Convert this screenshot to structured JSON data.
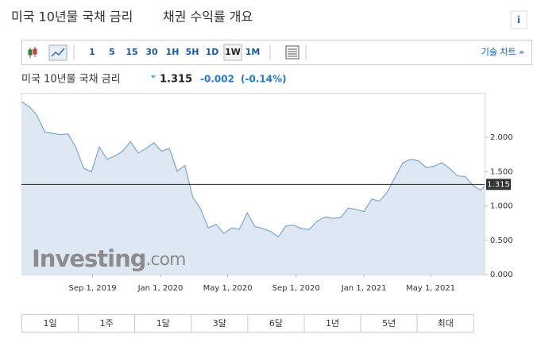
{
  "title": "미국 10년물 국채 금리",
  "subtitle": "채권 수익률 개요",
  "info_icon": "i",
  "toolbar": {
    "intervals": [
      "1",
      "5",
      "15",
      "30",
      "1H",
      "5H",
      "1D",
      "1W",
      "1M"
    ],
    "selected": "1W",
    "tech_chart": "기술 차트 »"
  },
  "quote": {
    "name": "미국 10년물 국채 금리",
    "price": 1.315,
    "change": -0.002,
    "change_pct": "(-0.14%)"
  },
  "watermark": {
    "brand": "Investing",
    "suffix": ".com"
  },
  "chart_data": {
    "type": "line",
    "x": [
      "2019-04-26",
      "2019-05-10",
      "2019-05-24",
      "2019-06-07",
      "2019-06-21",
      "2019-07-05",
      "2019-07-19",
      "2019-08-02",
      "2019-08-16",
      "2019-08-30",
      "2019-09-13",
      "2019-09-27",
      "2019-10-11",
      "2019-10-25",
      "2019-11-08",
      "2019-11-22",
      "2019-12-06",
      "2019-12-20",
      "2020-01-03",
      "2020-01-17",
      "2020-01-31",
      "2020-02-14",
      "2020-02-28",
      "2020-03-13",
      "2020-03-27",
      "2020-04-10",
      "2020-04-24",
      "2020-05-08",
      "2020-05-22",
      "2020-06-05",
      "2020-06-19",
      "2020-07-03",
      "2020-07-17",
      "2020-07-31",
      "2020-08-14",
      "2020-08-28",
      "2020-09-11",
      "2020-09-25",
      "2020-10-09",
      "2020-10-23",
      "2020-11-06",
      "2020-11-20",
      "2020-12-04",
      "2020-12-18",
      "2021-01-01",
      "2021-01-15",
      "2021-01-29",
      "2021-02-12",
      "2021-02-26",
      "2021-03-12",
      "2021-03-26",
      "2021-04-09",
      "2021-04-23",
      "2021-05-07",
      "2021-05-21",
      "2021-06-04",
      "2021-06-18",
      "2021-07-02",
      "2021-07-16",
      "2021-07-30",
      "2021-08-06"
    ],
    "series": [
      {
        "color": "#7ea6cf",
        "fill": "#dde8f2",
        "values": [
          2.52,
          2.45,
          2.32,
          2.08,
          2.06,
          2.04,
          2.05,
          1.85,
          1.55,
          1.5,
          1.86,
          1.68,
          1.73,
          1.8,
          1.94,
          1.77,
          1.84,
          1.92,
          1.8,
          1.84,
          1.51,
          1.59,
          1.13,
          0.96,
          0.68,
          0.73,
          0.6,
          0.68,
          0.66,
          0.9,
          0.7,
          0.67,
          0.63,
          0.55,
          0.71,
          0.72,
          0.67,
          0.66,
          0.78,
          0.84,
          0.82,
          0.83,
          0.97,
          0.95,
          0.92,
          1.1,
          1.07,
          1.2,
          1.42,
          1.63,
          1.68,
          1.66,
          1.56,
          1.58,
          1.63,
          1.55,
          1.44,
          1.43,
          1.3,
          1.23,
          1.29
        ]
      }
    ],
    "xlim": [
      "2019-04-26",
      "2021-08-06"
    ],
    "xticks": [
      {
        "value": "2019-09-01",
        "label": "Sep 1, 2019"
      },
      {
        "value": "2020-01-01",
        "label": "Jan 1, 2020"
      },
      {
        "value": "2020-05-01",
        "label": "May 1, 2020"
      },
      {
        "value": "2020-09-01",
        "label": "Sep 1, 2020"
      },
      {
        "value": "2021-01-01",
        "label": "Jan 1, 2021"
      },
      {
        "value": "2021-05-01",
        "label": "May 1, 2021"
      }
    ],
    "ylim": [
      0,
      2.65
    ],
    "yticks": [
      {
        "value": 0,
        "label": "0.000"
      },
      {
        "value": 0.5,
        "label": "0.500"
      },
      {
        "value": 1,
        "label": "1.000"
      },
      {
        "value": 1.5,
        "label": "1.500"
      },
      {
        "value": 2,
        "label": "2.000"
      }
    ]
  },
  "range_buttons": [
    "1일",
    "1주",
    "1달",
    "3달",
    "6달",
    "1년",
    "5년",
    "최대"
  ]
}
